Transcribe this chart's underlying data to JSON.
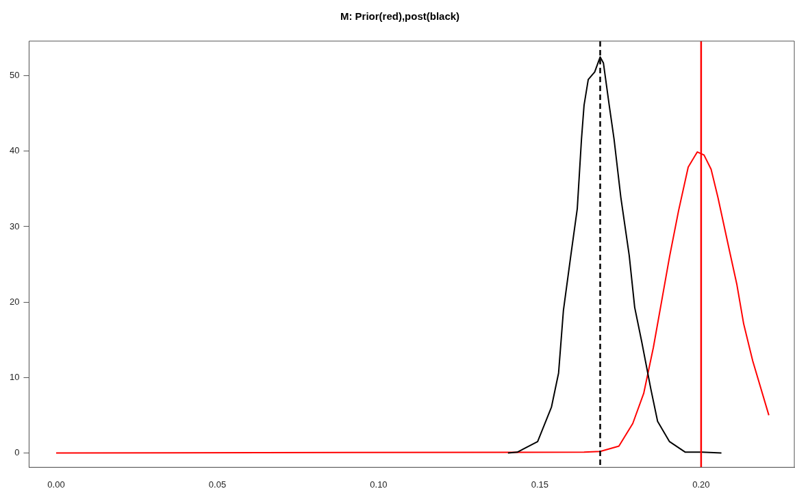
{
  "chart_data": {
    "type": "line",
    "title": "M: Prior(red),post(black)",
    "xlim": [
      -0.0084,
      0.2289
    ],
    "ylim": [
      -1.9,
      54.6
    ],
    "xticks": [
      {
        "value": 0,
        "label": "0.00"
      },
      {
        "value": 0.05,
        "label": "0.05"
      },
      {
        "value": 0.1,
        "label": "0.10"
      },
      {
        "value": 0.15,
        "label": "0.15"
      },
      {
        "value": 0.2,
        "label": "0.20"
      }
    ],
    "yticks": [
      0,
      10,
      20,
      30,
      40,
      50
    ],
    "grid": false,
    "legend": false,
    "marker": "none",
    "series": [
      {
        "color": "#000000",
        "line_style": "solid",
        "x": [
          0.1401,
          0.143,
          0.1493,
          0.1536,
          0.1558,
          0.1573,
          0.1596,
          0.1616,
          0.1629,
          0.1637,
          0.165,
          0.167,
          0.1687,
          0.1697,
          0.1715,
          0.173,
          0.1751,
          0.1777,
          0.1794,
          0.1816,
          0.1844,
          0.1865,
          0.1902,
          0.1951,
          0.2003,
          0.2063
        ],
        "values": [
          0,
          0.1,
          1.5,
          6.1,
          10.6,
          18.9,
          26.2,
          32.4,
          41.6,
          46.1,
          49.5,
          50.5,
          52.5,
          51.7,
          46.1,
          41.6,
          33.9,
          26.2,
          19.3,
          14.7,
          8.5,
          4.2,
          1.5,
          0.1,
          0.1,
          0
        ]
      },
      {
        "color": "#ff0000",
        "line_style": "solid",
        "x": [
          0,
          0.1637,
          0.1687,
          0.1745,
          0.1788,
          0.1822,
          0.1852,
          0.188,
          0.1902,
          0.193,
          0.196,
          0.1988,
          0.2009,
          0.2031,
          0.2052,
          0.2089,
          0.2111,
          0.2132,
          0.216,
          0.221
        ],
        "values": [
          0,
          0.1,
          0.2,
          0.9,
          3.9,
          7.9,
          14.0,
          20.7,
          26.0,
          32.1,
          37.9,
          39.9,
          39.5,
          37.6,
          33.9,
          26.6,
          22.3,
          17.1,
          12.2,
          5.0
        ]
      }
    ],
    "ref_lines": [
      {
        "axis": "x",
        "value": 0.1687,
        "color": "#000000",
        "line_style": "dashed"
      },
      {
        "axis": "x",
        "value": 0.2,
        "color": "#ff0000",
        "line_style": "solid"
      }
    ]
  }
}
